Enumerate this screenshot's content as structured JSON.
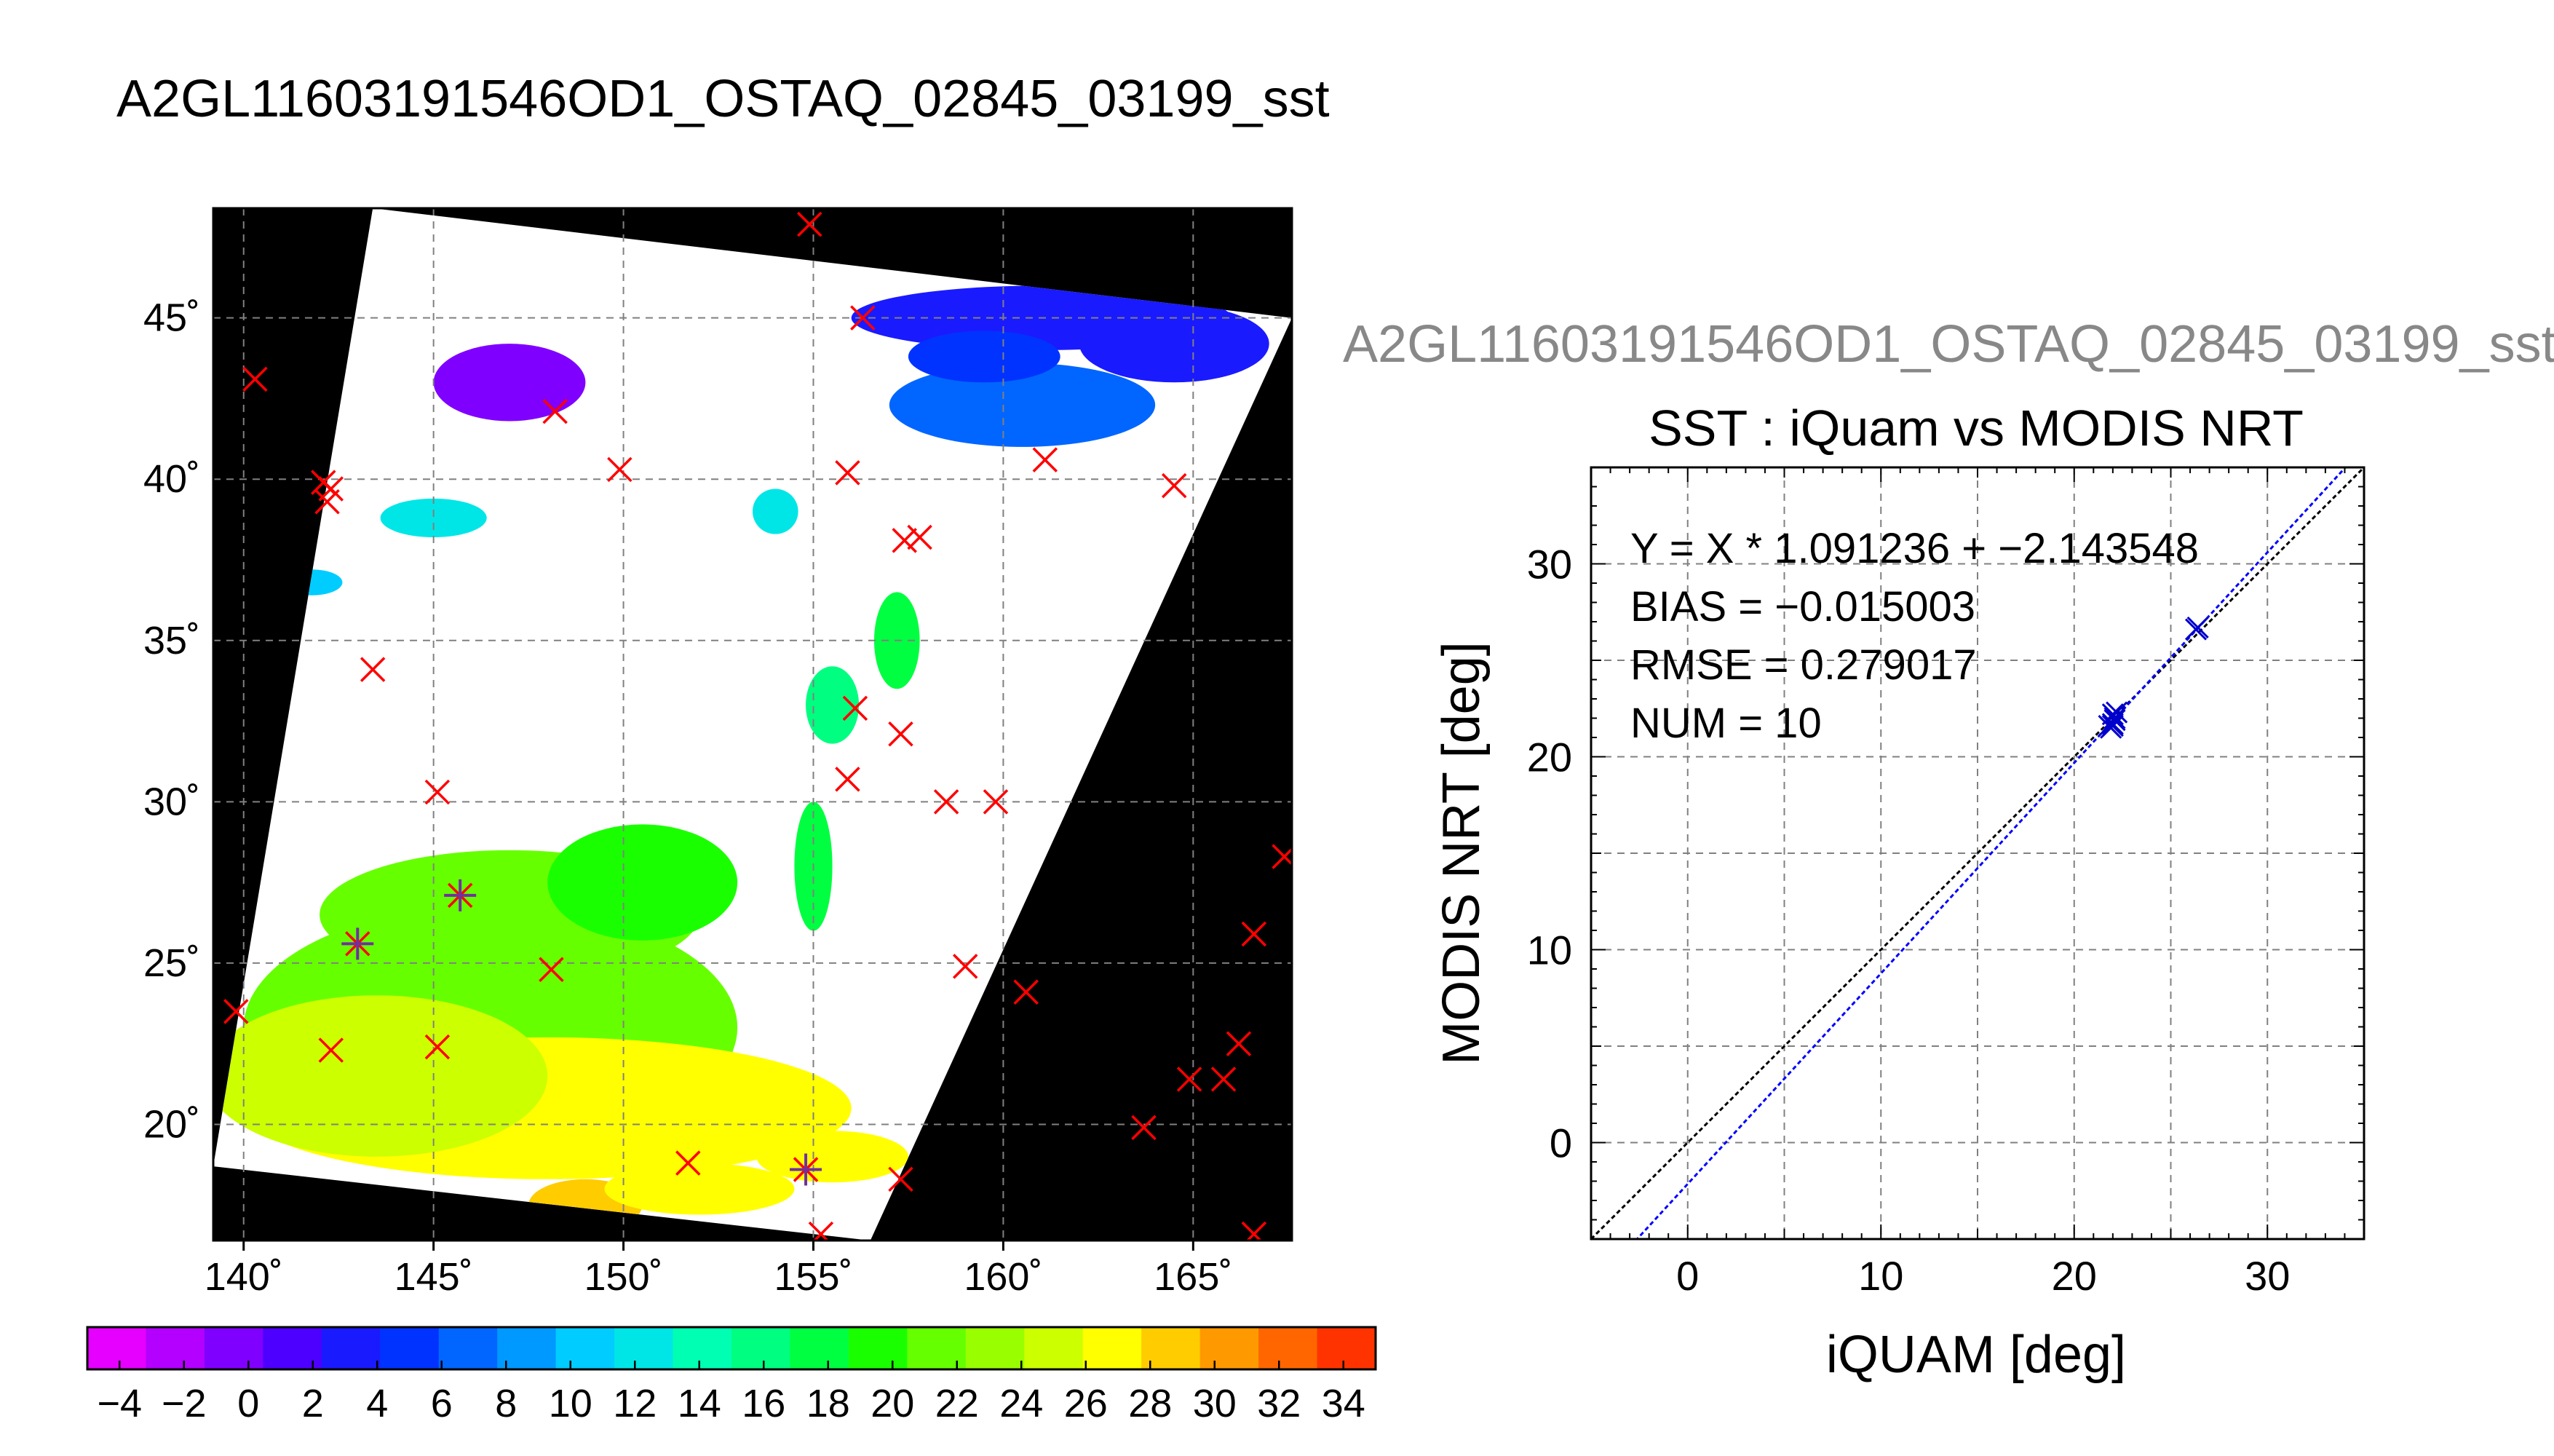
{
  "figure": {
    "title": "A2GL11603191546OD1_OSTAQ_02845_03199_sst",
    "subtitle": "A2GL11603191546OD1_OSTAQ_02845_03199_sst"
  },
  "colors": {
    "ocean_black": "#000000",
    "swath_white": "#ffffff",
    "grid": "#808080",
    "match_marker": "#ff0000",
    "used_marker": "#7030a0",
    "scatter_points": "#0000cc",
    "fit_line": "#0000ff",
    "one_to_one": "#000000"
  },
  "chart_data": [
    {
      "type": "map",
      "xlim": [
        139.2,
        167.6
      ],
      "ylim": [
        16.4,
        48.4
      ],
      "x_ticks": [
        140,
        145,
        150,
        155,
        160,
        165
      ],
      "x_tick_labels": [
        "140˚",
        "145˚",
        "150˚",
        "155˚",
        "160˚",
        "165˚"
      ],
      "y_ticks": [
        20,
        25,
        30,
        35,
        40,
        45
      ],
      "y_tick_labels": [
        "20˚",
        "25˚",
        "30˚",
        "35˚",
        "40˚",
        "45˚"
      ],
      "grid": true,
      "swath_corners": {
        "top_left": [
          143.4,
          48.4
        ],
        "top_right": [
          167.6,
          45.0
        ],
        "bottom_right": [
          156.5,
          16.4
        ],
        "bottom_left": [
          139.2,
          18.7
        ]
      },
      "sst_patches": [
        {
          "lon": 146.5,
          "lat": 23.0,
          "rx": 6.5,
          "ry": 3.8,
          "value": 22
        },
        {
          "lon": 148.0,
          "lat": 20.5,
          "rx": 8.0,
          "ry": 2.2,
          "value": 26
        },
        {
          "lon": 143.5,
          "lat": 21.5,
          "rx": 4.5,
          "ry": 2.5,
          "value": 25
        },
        {
          "lon": 147.0,
          "lat": 26.5,
          "rx": 5.0,
          "ry": 2.0,
          "value": 21
        },
        {
          "lon": 150.5,
          "lat": 27.5,
          "rx": 2.5,
          "ry": 1.8,
          "value": 19
        },
        {
          "lon": 149.0,
          "lat": 17.5,
          "rx": 1.5,
          "ry": 0.8,
          "value": 29
        },
        {
          "lon": 152.0,
          "lat": 18.0,
          "rx": 2.5,
          "ry": 0.8,
          "value": 26
        },
        {
          "lon": 155.5,
          "lat": 19.0,
          "rx": 2.0,
          "ry": 0.8,
          "value": 26
        },
        {
          "lon": 157.2,
          "lat": 35.0,
          "rx": 0.6,
          "ry": 1.5,
          "value": 17
        },
        {
          "lon": 155.5,
          "lat": 33.0,
          "rx": 0.7,
          "ry": 1.2,
          "value": 15
        },
        {
          "lon": 155.0,
          "lat": 28.0,
          "rx": 0.5,
          "ry": 2.0,
          "value": 18
        },
        {
          "lon": 145.0,
          "lat": 38.8,
          "rx": 1.4,
          "ry": 0.6,
          "value": 12
        },
        {
          "lon": 141.8,
          "lat": 36.8,
          "rx": 0.8,
          "ry": 0.4,
          "value": 11
        },
        {
          "lon": 154.0,
          "lat": 39.0,
          "rx": 0.6,
          "ry": 0.7,
          "value": 13
        },
        {
          "lon": 147.0,
          "lat": 43.0,
          "rx": 2.0,
          "ry": 1.2,
          "value": 0
        },
        {
          "lon": 161.0,
          "lat": 45.0,
          "rx": 5.0,
          "ry": 1.0,
          "value": 3
        },
        {
          "lon": 164.5,
          "lat": 44.2,
          "rx": 2.5,
          "ry": 1.2,
          "value": 3
        },
        {
          "lon": 160.5,
          "lat": 42.3,
          "rx": 3.5,
          "ry": 1.3,
          "value": 6
        },
        {
          "lon": 159.5,
          "lat": 43.8,
          "rx": 2.0,
          "ry": 0.8,
          "value": 5
        }
      ],
      "matchups_red": [
        [
          140.3,
          43.1
        ],
        [
          142.1,
          39.9
        ],
        [
          142.3,
          39.7
        ],
        [
          142.2,
          39.3
        ],
        [
          148.2,
          42.1
        ],
        [
          149.9,
          40.3
        ],
        [
          143.4,
          34.1
        ],
        [
          145.1,
          30.3
        ],
        [
          155.9,
          40.2
        ],
        [
          156.3,
          45.0
        ],
        [
          157.4,
          38.1
        ],
        [
          157.8,
          38.2
        ],
        [
          156.1,
          32.9
        ],
        [
          157.3,
          32.1
        ],
        [
          155.9,
          30.7
        ],
        [
          158.5,
          30.0
        ],
        [
          159.8,
          30.0
        ],
        [
          161.1,
          40.6
        ],
        [
          164.5,
          39.8
        ],
        [
          154.9,
          47.9
        ],
        [
          148.1,
          24.8
        ],
        [
          159.0,
          24.9
        ],
        [
          160.6,
          24.1
        ],
        [
          139.8,
          23.5
        ],
        [
          142.3,
          22.3
        ],
        [
          145.1,
          22.4
        ],
        [
          151.7,
          18.8
        ],
        [
          155.2,
          16.6
        ],
        [
          157.3,
          18.3
        ],
        [
          163.7,
          19.9
        ],
        [
          164.9,
          21.4
        ],
        [
          165.8,
          21.4
        ],
        [
          166.2,
          22.5
        ],
        [
          166.6,
          25.9
        ],
        [
          167.4,
          28.3
        ],
        [
          166.6,
          16.6
        ]
      ],
      "matchups_used": [
        [
          143.0,
          25.6
        ],
        [
          145.7,
          27.1
        ],
        [
          154.8,
          18.6
        ]
      ]
    },
    {
      "type": "scatter",
      "title": "SST : iQuam vs MODIS NRT",
      "xlabel": "iQUAM [deg]",
      "ylabel": "MODIS NRT [deg]",
      "xlim": [
        -5,
        35
      ],
      "ylim": [
        -5,
        35
      ],
      "x_ticks": [
        0,
        10,
        20,
        30
      ],
      "y_ticks": [
        0,
        10,
        20,
        30
      ],
      "minor_step": 5,
      "grid": true,
      "annotations": [
        "Y = X * 1.091236 + −2.143548",
        "BIAS = −0.015003",
        "RMSE = 0.279017",
        "NUM = 10"
      ],
      "fit": {
        "slope": 1.091236,
        "intercept": -2.143548
      },
      "points": [
        [
          22.0,
          22.2
        ],
        [
          22.1,
          22.0
        ],
        [
          21.9,
          21.5
        ],
        [
          22.0,
          21.7
        ],
        [
          22.2,
          22.3
        ],
        [
          22.0,
          21.6
        ],
        [
          26.4,
          26.7
        ],
        [
          26.3,
          26.6
        ],
        [
          22.1,
          21.9
        ],
        [
          21.8,
          21.6
        ]
      ]
    }
  ],
  "colorbar": {
    "min": -5,
    "max": 35,
    "step": 2,
    "tick_values": [
      -4,
      -2,
      0,
      2,
      4,
      6,
      8,
      10,
      12,
      14,
      16,
      18,
      20,
      22,
      24,
      26,
      28,
      30,
      32,
      34
    ],
    "tick_labels": [
      "−4",
      "−2",
      "0",
      "2",
      "4",
      "6",
      "8",
      "10",
      "12",
      "14",
      "16",
      "18",
      "20",
      "22",
      "24",
      "26",
      "28",
      "30",
      "32",
      "34"
    ],
    "colors": [
      "#e600ff",
      "#b300ff",
      "#8000ff",
      "#4d00ff",
      "#1a1aff",
      "#0033ff",
      "#0066ff",
      "#0099ff",
      "#00ccff",
      "#00e6e6",
      "#00ffb3",
      "#00ff80",
      "#00ff40",
      "#1aff00",
      "#66ff00",
      "#99ff00",
      "#ccff00",
      "#ffff00",
      "#ffcc00",
      "#ff9900",
      "#ff6600",
      "#ff3300"
    ]
  }
}
